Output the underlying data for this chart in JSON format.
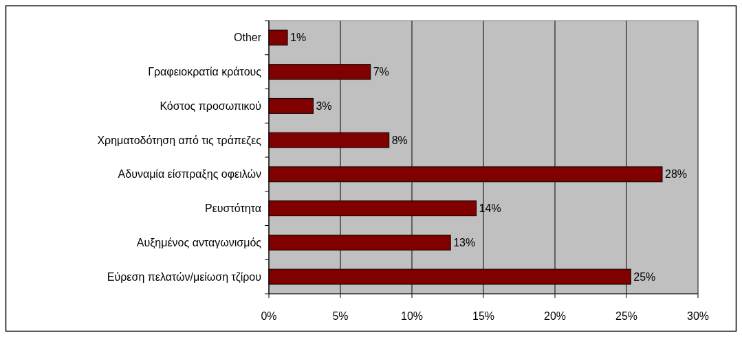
{
  "chart_data": {
    "type": "bar",
    "orientation": "horizontal",
    "categories": [
      "Other",
      "Γραφειοκρατία κράτους",
      "Κόστος προσωπικού",
      "Χρηματοδότηση από τις τράπεζες",
      "Αδυναμία είσπραξης οφειλών",
      "Ρευστότητα",
      "Αυξημένος ανταγωνισμός",
      "Εύρεση πελατών/μείωση τζίρου"
    ],
    "values": [
      1.3,
      7.1,
      3.1,
      8.4,
      27.5,
      14.5,
      12.7,
      25.3
    ],
    "value_labels": [
      "1%",
      "7%",
      "3%",
      "8%",
      "28%",
      "14%",
      "13%",
      "25%"
    ],
    "color": "#800000",
    "xlim": [
      0,
      30
    ],
    "xticks": [
      {
        "value": 0,
        "label": "0%"
      },
      {
        "value": 5,
        "label": "5%"
      },
      {
        "value": 10,
        "label": "10%"
      },
      {
        "value": 15,
        "label": "15%"
      },
      {
        "value": 20,
        "label": "20%"
      },
      {
        "value": 25,
        "label": "25%"
      },
      {
        "value": 30,
        "label": "30%"
      }
    ],
    "grid": "x"
  }
}
